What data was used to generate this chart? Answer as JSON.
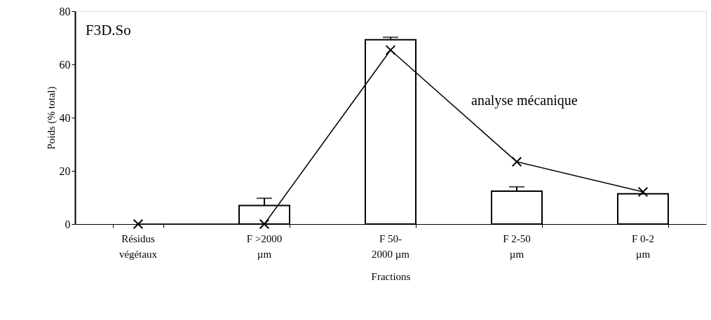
{
  "chart_data": {
    "type": "bar",
    "title": "F3D.So",
    "xlabel": "Fractions",
    "ylabel": "Poids (% total)",
    "categories": [
      "Résidus\nvégétaux",
      "F >2000\nµm",
      "F 50-\n2000 µm",
      "F 2-50\nµm",
      "F 0-2\nµm"
    ],
    "ylim": [
      0,
      80
    ],
    "yticks": [
      0,
      20,
      40,
      60,
      80
    ],
    "grid": false,
    "series": [
      {
        "color": "#ffffff",
        "values": [
          0,
          7,
          69.3,
          12.4,
          11.4
        ],
        "errors": [
          null,
          [
            7,
            9.7
          ],
          [
            69.3,
            70.2
          ],
          [
            12.4,
            14
          ],
          null
        ]
      },
      {
        "type": "line",
        "name": "analyse mécanique",
        "color": "#000000",
        "marker": "cross",
        "line_style": "solid",
        "values": [
          0,
          0,
          65.4,
          23.4,
          12.1
        ]
      }
    ]
  }
}
